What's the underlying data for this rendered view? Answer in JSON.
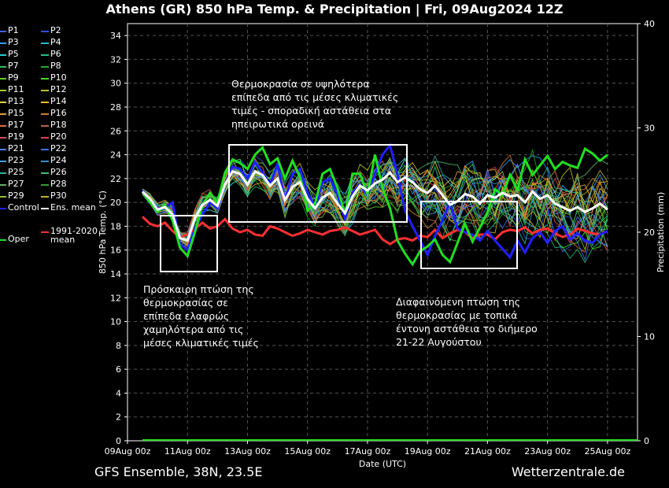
{
  "title": "Athens  (GR)  850 hPa Temp. & Precipitation | Fri, 09Aug2024 12Z",
  "footer": {
    "left": "GFS Ensemble, 38N, 23.5E",
    "right": "Wetterzentrale.de"
  },
  "chart_data": {
    "type": "line",
    "xlabel": "Date (UTC)",
    "ylabel": "850 hPa Temp. (°C)",
    "y2label": "Precipitation (mm)",
    "ylim": [
      0,
      35
    ],
    "y2lim": [
      0,
      40
    ],
    "yticks": [
      "0",
      "2",
      "4",
      "6",
      "8",
      "10",
      "12",
      "14",
      "16",
      "18",
      "20",
      "22",
      "24",
      "26",
      "28",
      "30",
      "32",
      "34"
    ],
    "y2ticks": [
      "0",
      "10",
      "20",
      "30",
      "40"
    ],
    "xticks": [
      "09Aug 00z",
      "11Aug 00z",
      "13Aug 00z",
      "15Aug 00z",
      "17Aug 00z",
      "19Aug 00z",
      "21Aug 00z",
      "23Aug 00z",
      "25Aug 00z"
    ],
    "grid": true,
    "x_hours": [
      12,
      18,
      24,
      30,
      36,
      42,
      48,
      54,
      60,
      66,
      72,
      78,
      84,
      90,
      96,
      102,
      108,
      114,
      120,
      126,
      132,
      138,
      144,
      150,
      156,
      162,
      168,
      174,
      180,
      186,
      192,
      198,
      204,
      210,
      216,
      222,
      228,
      234,
      240,
      246,
      252,
      258,
      264,
      270,
      276,
      282,
      288,
      294,
      300,
      306,
      312,
      318,
      324,
      330,
      336,
      342,
      348,
      354,
      360,
      366,
      372,
      378,
      384
    ],
    "series": [
      {
        "name": "Control",
        "color": "#2020ff",
        "values": [
          21.0,
          20.2,
          19.5,
          19.6,
          20.0,
          16.5,
          16.0,
          17.8,
          19.0,
          20.0,
          19.5,
          21.5,
          23.0,
          22.8,
          22.0,
          23.4,
          22.5,
          21.5,
          23.2,
          20.2,
          22.4,
          22.8,
          20.8,
          19.6,
          21.7,
          22.0,
          20.7,
          18.6,
          20.8,
          21.5,
          20.6,
          22.4,
          24.0,
          24.8,
          22.3,
          19.3,
          18.0,
          16.8,
          15.6,
          17.2,
          18.5,
          20.0,
          17.8,
          17.5,
          17.3,
          16.8,
          17.6,
          16.8,
          16.1,
          15.4,
          16.8,
          15.8,
          17.0,
          17.5,
          16.6,
          17.6,
          18.0,
          16.9,
          17.4,
          16.8,
          16.6,
          17.3,
          17.6
        ]
      },
      {
        "name": "Ens. mean",
        "color": "#ffffff",
        "values": [
          20.9,
          20.3,
          19.4,
          19.6,
          19.0,
          17.0,
          16.8,
          18.7,
          19.8,
          20.2,
          19.7,
          21.5,
          22.6,
          22.4,
          21.5,
          22.6,
          22.3,
          21.4,
          22.0,
          20.2,
          21.3,
          21.7,
          20.3,
          19.5,
          20.4,
          20.8,
          19.9,
          19.1,
          20.5,
          21.4,
          21.0,
          21.6,
          21.9,
          22.5,
          21.7,
          22.1,
          21.7,
          21.1,
          20.8,
          21.4,
          20.6,
          19.8,
          20.1,
          20.7,
          20.5,
          19.9,
          20.6,
          20.4,
          20.8,
          20.5,
          20.6,
          20.0,
          20.9,
          20.3,
          20.6,
          19.9,
          19.6,
          19.3,
          19.6,
          19.2,
          19.5,
          19.9,
          19.4
        ]
      },
      {
        "name": "Oper",
        "color": "#20e020",
        "values": [
          20.9,
          20.0,
          19.2,
          19.8,
          18.5,
          16.2,
          15.5,
          17.5,
          19.8,
          20.8,
          20.0,
          22.5,
          23.6,
          23.3,
          22.8,
          24.0,
          24.6,
          23.2,
          23.7,
          22.0,
          23.5,
          22.1,
          19.3,
          19.9,
          22.4,
          22.8,
          21.2,
          19.0,
          22.4,
          22.4,
          20.7,
          24.0,
          21.2,
          19.5,
          16.8,
          15.7,
          14.8,
          15.9,
          16.3,
          16.9,
          15.6,
          15.0,
          16.6,
          18.2,
          16.7,
          17.9,
          19.2,
          21.1,
          20.6,
          22.3,
          21.0,
          23.6,
          22.3,
          23.1,
          23.9,
          22.8,
          23.4,
          23.1,
          22.9,
          24.5,
          24.1,
          23.5,
          24.0
        ]
      },
      {
        "name": "1991-2020 mean",
        "color": "#ff3030",
        "values": [
          18.8,
          18.2,
          18.0,
          18.3,
          17.6,
          17.1,
          17.3,
          17.8,
          18.3,
          17.8,
          18.0,
          18.6,
          17.8,
          17.5,
          17.7,
          17.3,
          17.2,
          18.0,
          17.8,
          17.5,
          17.2,
          17.4,
          17.7,
          17.5,
          17.3,
          17.6,
          17.7,
          17.9,
          17.6,
          17.3,
          17.5,
          17.7,
          16.9,
          16.5,
          16.9,
          17.0,
          16.8,
          17.2,
          17.1,
          17.7,
          17.0,
          17.4,
          17.7,
          17.5,
          17.0,
          17.3,
          17.3,
          16.9,
          17.5,
          17.7,
          17.6,
          17.9,
          17.4,
          17.7,
          17.8,
          17.4,
          17.1,
          17.3,
          17.8,
          17.6,
          17.4,
          17.3,
          17.6
        ]
      }
    ],
    "ensemble_members": [
      "P1",
      "P2",
      "P3",
      "P4",
      "P5",
      "P6",
      "P7",
      "P8",
      "P9",
      "P10",
      "P11",
      "P12",
      "P13",
      "P14",
      "P15",
      "P16",
      "P17",
      "P18",
      "P19",
      "P20",
      "P21",
      "P22",
      "P23",
      "P24",
      "P25",
      "P26",
      "P27",
      "P28",
      "P29",
      "P30"
    ],
    "ensemble_colors": [
      "#4060ff",
      "#3050e0",
      "#30a0ff",
      "#20c0c0",
      "#20d0d0",
      "#20c080",
      "#30c060",
      "#20b020",
      "#60d020",
      "#40e020",
      "#a0d020",
      "#c0c020",
      "#e0d040",
      "#f0c020",
      "#e0a030",
      "#d08030",
      "#e07040",
      "#c06040",
      "#d05050",
      "#e04040",
      "#5080ff",
      "#4070f0",
      "#40a0e0",
      "#3090d0",
      "#30b0a0",
      "#40c070",
      "#60b060",
      "#30a030",
      "#90c030",
      "#c0b030"
    ],
    "precip": [
      0,
      0,
      0,
      0,
      0,
      0,
      0,
      0,
      0,
      0,
      0,
      0,
      0,
      0,
      0,
      0,
      0,
      0,
      0,
      0,
      0,
      0,
      0,
      0,
      0,
      0,
      0,
      0,
      0,
      0,
      0,
      0,
      0,
      0,
      0,
      0,
      0,
      0,
      0,
      0,
      0,
      0,
      0,
      0,
      0,
      0,
      0,
      0,
      0,
      0,
      0,
      0,
      0,
      0,
      0,
      0,
      0,
      0,
      0,
      0,
      0,
      0,
      0
    ],
    "annotations": [
      {
        "text": "Θερμοκρασία σε υψηλότερα\nεπίπεδα από τις μέσες κλιματικές\nτιμές - σποραδική αστάθεια στα\nηπειρωτικά ορεινά"
      },
      {
        "text": "Πρόσκαιρη πτώση της\nθερμοκρασίας σε\nεπίπεδα ελαφρώς\nχαμηλότερα από τις\nμέσες κλιματικές τιμές"
      },
      {
        "text": "Διαφαινόμενη πτώση της\nθερμοκρασίας με τοπικά\nέντονη αστάθεια το διήμερο\n21-22 Αυγούστου"
      }
    ]
  },
  "legend": {
    "items": [
      "P1",
      "P2",
      "P3",
      "P4",
      "P5",
      "P6",
      "P7",
      "P8",
      "P9",
      "P10",
      "P11",
      "P12",
      "P13",
      "P14",
      "P15",
      "P16",
      "P17",
      "P18",
      "P19",
      "P20",
      "P21",
      "P22",
      "P23",
      "P24",
      "P25",
      "P26",
      "P27",
      "P28",
      "P29",
      "P30"
    ],
    "control": "Control",
    "mean": "Ens. mean",
    "climate": "1991-2020\nmean",
    "oper": "Oper"
  }
}
